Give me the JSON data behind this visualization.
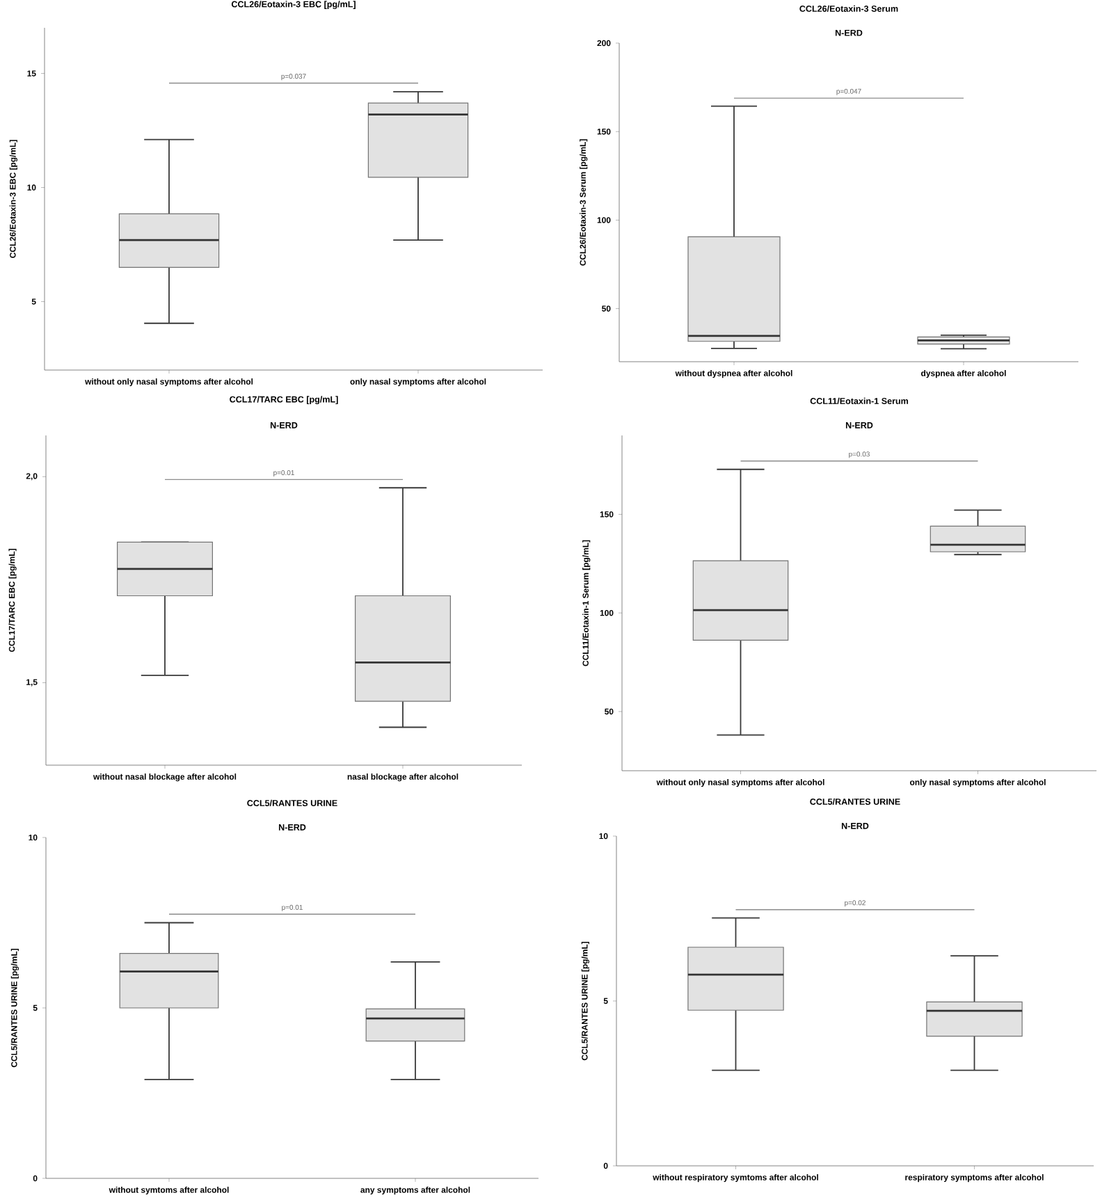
{
  "chart_data": [
    {
      "type": "box",
      "title": "CCL26/Eotaxin-3 EBC [pg/mL]",
      "ylabel": "CCL26/Eotaxin-3 EBC [pg/mL]",
      "categories": [
        "without only nasal symptoms after alcohol",
        "only nasal symptoms after alcohol"
      ],
      "ylim": [
        2,
        17
      ],
      "yticks": [
        5,
        10,
        15
      ],
      "annotations": [
        "p=0.037"
      ],
      "series": [
        {
          "color": "#e2e2e2",
          "boxes": [
            {
              "low": 4.05,
              "q1": 6.5,
              "median": 7.7,
              "q3": 8.85,
              "high": 12.1
            },
            {
              "low": 7.7,
              "q1": 10.45,
              "median": 13.2,
              "q3": 13.7,
              "high": 14.2
            }
          ]
        }
      ]
    },
    {
      "type": "box",
      "title": "CCL26/Eotaxin-3 Serum",
      "subtitle": "N-ERD",
      "ylabel": "CCL26/Eotaxin-3 Serum [pg/mL]",
      "categories": [
        "without dyspnea after alcohol",
        "dyspnea after alcohol"
      ],
      "ylim": [
        20,
        200
      ],
      "yticks": [
        50,
        100,
        150,
        200
      ],
      "annotations": [
        "p=0.047"
      ],
      "series": [
        {
          "color": "#e2e2e2",
          "boxes": [
            {
              "low": 27.5,
              "q1": 31.5,
              "median": 34.6,
              "q3": 90.6,
              "high": 164.4
            },
            {
              "low": 27.3,
              "q1": 30,
              "median": 32,
              "q3": 34,
              "high": 35
            }
          ]
        }
      ]
    },
    {
      "type": "box",
      "title": "CCL17/TARC EBC [pg/mL]",
      "subtitle": "N-ERD",
      "ylabel": "CCL17/TARC EBC [pg/mL]",
      "categories": [
        "without nasal blockage after alcohol",
        "nasal blockage after alcohol"
      ],
      "ylim": [
        1.3,
        2.1
      ],
      "yticks": [
        {
          "value": 1.5,
          "label": "1,5"
        },
        {
          "value": 2.0,
          "label": "2,0"
        }
      ],
      "annotations": [
        "p=0.01"
      ],
      "series": [
        {
          "color": "#e2e2e2",
          "boxes": [
            {
              "low": 1.518,
              "q1": 1.711,
              "median": 1.776,
              "q3": 1.841,
              "high": 1.841
            },
            {
              "low": 1.392,
              "q1": 1.455,
              "median": 1.549,
              "q3": 1.711,
              "high": 1.973
            }
          ]
        }
      ]
    },
    {
      "type": "box",
      "title": "CCL11/Eotaxin-1 Serum",
      "subtitle": "N-ERD",
      "ylabel": "CCL11/Eotaxin-1 Serum [pg/mL]",
      "categories": [
        "without only nasal symptoms after alcohol",
        "only nasal symptoms after alcohol"
      ],
      "ylim": [
        20,
        190
      ],
      "yticks": [
        50,
        100,
        150
      ],
      "annotations": [
        "p=0.03"
      ],
      "series": [
        {
          "color": "#e2e2e2",
          "boxes": [
            {
              "low": 38.1,
              "q1": 86.2,
              "median": 101.4,
              "q3": 126.5,
              "high": 172.8
            },
            {
              "low": 129.6,
              "q1": 131,
              "median": 134.6,
              "q3": 144,
              "high": 152.1
            }
          ]
        }
      ]
    },
    {
      "type": "box",
      "title": "CCL5/RANTES URINE",
      "subtitle": "N-ERD",
      "ylabel": "CCL5/RANTES URINE [pg/mL]",
      "categories": [
        "without symtoms after alcohol",
        "any symptoms after alcohol"
      ],
      "ylim": [
        0,
        10
      ],
      "yticks": [
        0,
        5,
        10
      ],
      "annotations": [
        "p=0.01"
      ],
      "series": [
        {
          "color": "#e2e2e2",
          "boxes": [
            {
              "low": 2.9,
              "q1": 5.0,
              "median": 6.07,
              "q3": 6.6,
              "high": 7.5
            },
            {
              "low": 2.9,
              "q1": 4.03,
              "median": 4.69,
              "q3": 4.97,
              "high": 6.35
            }
          ]
        }
      ]
    },
    {
      "type": "box",
      "title": "CCL5/RANTES URINE",
      "subtitle": "N-ERD",
      "ylabel": "CCL5/RANTES URINE [pg/mL]",
      "categories": [
        "without respiratory symtoms after alcohol",
        "respiratory symptoms after alcohol"
      ],
      "ylim": [
        0,
        10
      ],
      "yticks": [
        0,
        5,
        10
      ],
      "annotations": [
        "p=0.02"
      ],
      "series": [
        {
          "color": "#e2e2e2",
          "boxes": [
            {
              "low": 2.9,
              "q1": 4.72,
              "median": 5.8,
              "q3": 6.63,
              "high": 7.52
            },
            {
              "low": 2.9,
              "q1": 3.93,
              "median": 4.7,
              "q3": 4.97,
              "high": 6.37
            }
          ]
        }
      ]
    }
  ]
}
